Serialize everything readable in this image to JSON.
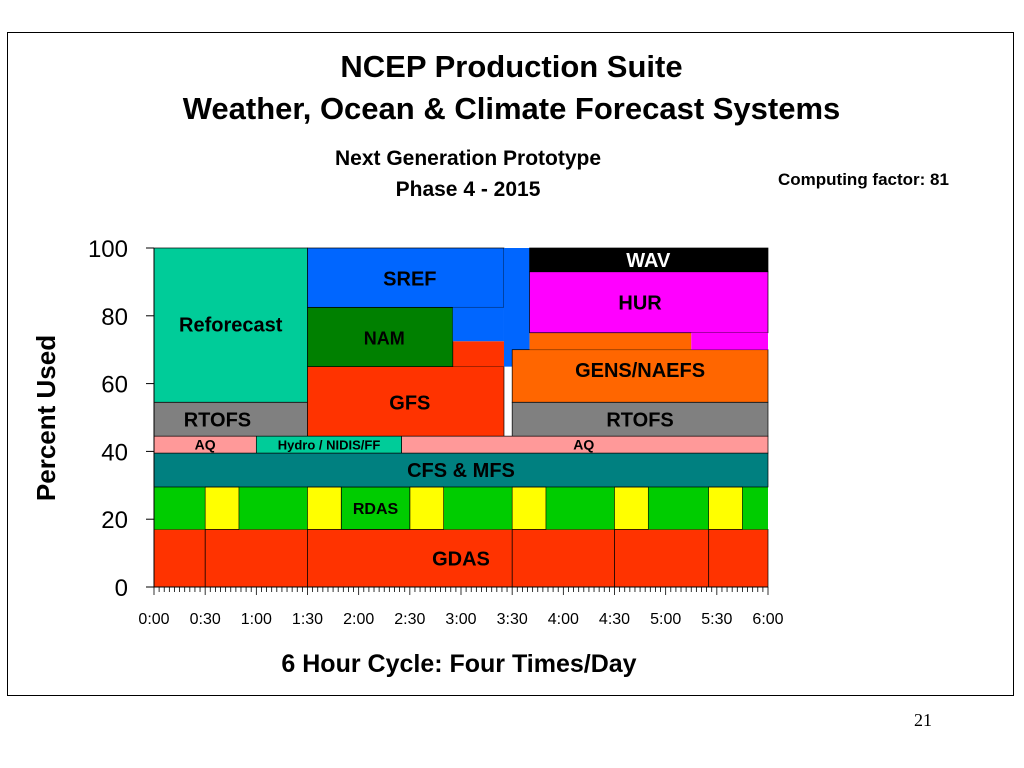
{
  "title": "NCEP Production Suite",
  "title2": "Weather, Ocean & Climate Forecast Systems",
  "subtitle": "Next Generation Prototype",
  "subtitle2": "Phase 4 - 2015",
  "computing_factor": "Computing factor: 81",
  "page_number": "21",
  "chart_data": {
    "type": "area",
    "title": "NCEP Production Suite",
    "xlabel": "6 Hour Cycle: Four Times/Day",
    "ylabel": "Percent Used",
    "xlim": [
      0,
      6
    ],
    "ylim": [
      0,
      100
    ],
    "x_ticks": [
      "0:00",
      "0:30",
      "1:00",
      "1:30",
      "2:00",
      "2:30",
      "3:00",
      "3:30",
      "4:00",
      "4:30",
      "5:00",
      "5:30",
      "6:00"
    ],
    "y_ticks": [
      0,
      20,
      40,
      60,
      80,
      100
    ],
    "blocks": [
      {
        "name": "GDAS",
        "label": "GDAS",
        "x0": 0,
        "x1": 6,
        "y0": 0,
        "y1": 17,
        "color": "#ff3300",
        "dividers": [
          0.5,
          1.5,
          3.5,
          4.5,
          5.42
        ]
      },
      {
        "name": "RDAS-green",
        "label": "",
        "x0": 0,
        "x1": 6,
        "y0": 17,
        "y1": 29.5,
        "color": "#00cc00"
      },
      {
        "name": "RDAS-yellow-1",
        "label": "",
        "x0": 0.5,
        "x1": 0.83,
        "y0": 17,
        "y1": 29.5,
        "color": "#ffff00"
      },
      {
        "name": "RDAS-yellow-2",
        "label": "",
        "x0": 1.5,
        "x1": 1.83,
        "y0": 17,
        "y1": 29.5,
        "color": "#ffff00"
      },
      {
        "name": "RDAS-yellow-3",
        "label": "",
        "x0": 2.5,
        "x1": 2.83,
        "y0": 17,
        "y1": 29.5,
        "color": "#ffff00"
      },
      {
        "name": "RDAS-yellow-4",
        "label": "",
        "x0": 3.5,
        "x1": 3.83,
        "y0": 17,
        "y1": 29.5,
        "color": "#ffff00"
      },
      {
        "name": "RDAS-yellow-5",
        "label": "",
        "x0": 4.5,
        "x1": 4.83,
        "y0": 17,
        "y1": 29.5,
        "color": "#ffff00"
      },
      {
        "name": "RDAS-yellow-6",
        "label": "",
        "x0": 5.42,
        "x1": 5.75,
        "y0": 17,
        "y1": 29.5,
        "color": "#ffff00"
      },
      {
        "name": "RDAS-label",
        "label": "RDAS",
        "x0": 1.83,
        "x1": 2.5,
        "y0": 17,
        "y1": 29.5,
        "color": "#00cc00"
      },
      {
        "name": "CFS-MFS",
        "label": "CFS & MFS",
        "x0": 0,
        "x1": 6,
        "y0": 29.5,
        "y1": 39.5,
        "color": "#008080"
      },
      {
        "name": "AQ-left",
        "label": "AQ",
        "x0": 0,
        "x1": 1,
        "y0": 39.5,
        "y1": 44.5,
        "color": "#ff9999"
      },
      {
        "name": "Hydro-NIDIS-FF",
        "label": "Hydro / NIDIS/FF",
        "x0": 1,
        "x1": 2.42,
        "y0": 39.5,
        "y1": 44.5,
        "color": "#00cc99"
      },
      {
        "name": "AQ-right",
        "label": "AQ",
        "x0": 2.42,
        "x1": 6,
        "y0": 39.5,
        "y1": 44.5,
        "color": "#ff9999"
      },
      {
        "name": "RTOFS-left",
        "label": "RTOFS",
        "x0": 0,
        "x1": 1.5,
        "y0": 44.5,
        "y1": 54.5,
        "color": "#808080"
      },
      {
        "name": "RTOFS-right",
        "label": "RTOFS",
        "x0": 3.5,
        "x1": 6,
        "y0": 44.5,
        "y1": 54.5,
        "color": "#808080"
      },
      {
        "name": "Reforecast",
        "label": "Reforecast",
        "x0": 0,
        "x1": 1.5,
        "y0": 54.5,
        "y1": 100,
        "color": "#00cc99"
      },
      {
        "name": "GFS",
        "label": "GFS",
        "x0": 1.5,
        "x1": 3.42,
        "y0": 44.5,
        "y1": 65,
        "color": "#ff3300"
      },
      {
        "name": "GFS-top",
        "label": "",
        "x0": 2.92,
        "x1": 3.42,
        "y0": 65,
        "y1": 72.5,
        "color": "#ff3300"
      },
      {
        "name": "NAM",
        "label": "NAM",
        "x0": 1.5,
        "x1": 2.92,
        "y0": 65,
        "y1": 82.5,
        "color": "#008000"
      },
      {
        "name": "SREF",
        "label": "SREF",
        "x0": 1.5,
        "x1": 3.42,
        "y0": 82.5,
        "y1": 100,
        "color": "#0066ff"
      },
      {
        "name": "SREF-side",
        "label": "",
        "x0": 2.92,
        "x1": 3.42,
        "y0": 72.5,
        "y1": 82.5,
        "color": "#0066ff"
      },
      {
        "name": "SREF-right",
        "label": "",
        "x0": 3.42,
        "x1": 3.67,
        "y0": 65,
        "y1": 100,
        "color": "#0066ff"
      },
      {
        "name": "GENS-NAEFS",
        "label": "GENS/NAEFS",
        "x0": 3.5,
        "x1": 6,
        "y0": 54.5,
        "y1": 70,
        "color": "#ff6600"
      },
      {
        "name": "GENS-NAEFS-upper",
        "label": "",
        "x0": 3.67,
        "x1": 5.25,
        "y0": 70,
        "y1": 75,
        "color": "#ff6600"
      },
      {
        "name": "HUR",
        "label": "HUR",
        "x0": 3.67,
        "x1": 6,
        "y0": 75,
        "y1": 93,
        "color": "#ff00ff"
      },
      {
        "name": "HUR-lower",
        "label": "",
        "x0": 5.25,
        "x1": 6,
        "y0": 70,
        "y1": 75,
        "color": "#ff00ff"
      },
      {
        "name": "WAV",
        "label": "WAV",
        "x0": 3.67,
        "x1": 6,
        "y0": 93,
        "y1": 100,
        "color": "#000000"
      }
    ]
  }
}
